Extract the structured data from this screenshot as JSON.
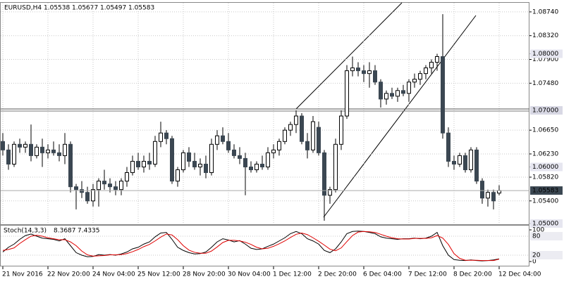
{
  "chart_data": [
    {
      "type": "candlestick",
      "title": "EURUSD,H4",
      "ylim": [
        1.05,
        1.0895
      ],
      "yticks": [
        {
          "value": 1.0874,
          "label": "1.08740"
        },
        {
          "value": 1.0832,
          "label": "1.08320"
        },
        {
          "value": 1.079,
          "label": "1.07900"
        },
        {
          "value": 1.0748,
          "label": "1.07480"
        },
        {
          "value": 1.0665,
          "label": "1.06650"
        },
        {
          "value": 1.0623,
          "label": "1.06230"
        },
        {
          "value": 1.0582,
          "label": "1.05820"
        },
        {
          "value": 1.054,
          "label": "1.05400"
        }
      ],
      "xticks": [
        {
          "value": 0,
          "label": "21 Nov 2016"
        },
        {
          "value": 8,
          "label": "22 Nov 20:00"
        },
        {
          "value": 16,
          "label": "24 Nov 04:00"
        },
        {
          "value": 24,
          "label": "25 Nov 12:00"
        },
        {
          "value": 32,
          "label": "28 Nov 20:00"
        },
        {
          "value": 40,
          "label": "30 Nov 04:00"
        },
        {
          "value": 48,
          "label": "1 Dec 12:00"
        },
        {
          "value": 56,
          "label": "2 Dec 20:00"
        },
        {
          "value": 64,
          "label": "6 Dec 04:00"
        },
        {
          "value": 72,
          "label": "7 Dec 12:00"
        },
        {
          "value": 80,
          "label": "8 Dec 20:00"
        },
        {
          "value": 88,
          "label": "12 Dec 04:00"
        }
      ],
      "hline": {
        "value": 1.07,
        "label": "1.07000"
      },
      "levels": [
        {
          "value": 1.08,
          "label": "1.08000"
        },
        {
          "value": 1.06,
          "label": "1.06000"
        },
        {
          "value": 1.05,
          "label": "1.05000"
        }
      ],
      "grid": true,
      "up_color": "#ffffff",
      "down_color": "#3b4752",
      "open": [
        1.0645,
        1.063,
        1.0605,
        1.064,
        1.0635,
        1.064,
        1.062,
        1.0635,
        1.0625,
        1.063,
        1.0625,
        1.062,
        1.064,
        1.0565,
        1.056,
        1.0555,
        1.054,
        1.056,
        1.0575,
        1.057,
        1.0565,
        1.056,
        1.0575,
        1.059,
        1.061,
        1.06,
        1.061,
        1.0605,
        1.0645,
        1.066,
        1.065,
        1.0575,
        1.0595,
        1.0625,
        1.061,
        1.06,
        1.0605,
        1.059,
        1.064,
        1.0655,
        1.0645,
        1.063,
        1.062,
        1.0615,
        1.06,
        1.0595,
        1.0605,
        1.06,
        1.0625,
        1.063,
        1.0645,
        1.0665,
        1.0675,
        1.069,
        1.0645,
        1.063,
        1.067,
        1.0625,
        1.055,
        1.056,
        1.064,
        1.069,
        1.077,
        1.0775,
        1.077,
        1.0765,
        1.077,
        1.075,
        1.072,
        1.073,
        1.0725,
        1.0735,
        1.073,
        1.075,
        1.0755,
        1.0765,
        1.0775,
        1.0785,
        1.0795,
        1.066,
        1.061,
        1.0605,
        1.062,
        1.0595,
        1.063,
        1.0575,
        1.0545,
        1.0555,
        1.05538
      ],
      "high": [
        1.066,
        1.064,
        1.0645,
        1.065,
        1.0645,
        1.0675,
        1.064,
        1.065,
        1.064,
        1.0645,
        1.064,
        1.066,
        1.0645,
        1.057,
        1.0575,
        1.0565,
        1.057,
        1.058,
        1.0595,
        1.058,
        1.0575,
        1.058,
        1.06,
        1.062,
        1.0625,
        1.062,
        1.0625,
        1.0655,
        1.068,
        1.0665,
        1.0655,
        1.06,
        1.063,
        1.0635,
        1.0625,
        1.0615,
        1.062,
        1.065,
        1.0665,
        1.067,
        1.066,
        1.064,
        1.0635,
        1.0625,
        1.061,
        1.061,
        1.062,
        1.0635,
        1.064,
        1.065,
        1.067,
        1.068,
        1.07,
        1.0695,
        1.066,
        1.069,
        1.068,
        1.063,
        1.0565,
        1.065,
        1.07,
        1.078,
        1.0795,
        1.0785,
        1.078,
        1.0785,
        1.078,
        1.0755,
        1.0735,
        1.074,
        1.074,
        1.0745,
        1.0755,
        1.0765,
        1.077,
        1.078,
        1.079,
        1.08,
        1.087,
        1.067,
        1.062,
        1.0625,
        1.0625,
        1.0635,
        1.0635,
        1.058,
        1.056,
        1.056,
        1.05677
      ],
      "low": [
        1.062,
        1.0595,
        1.06,
        1.0625,
        1.0625,
        1.061,
        1.0615,
        1.06,
        1.0615,
        1.062,
        1.061,
        1.0605,
        1.0555,
        1.0525,
        1.0545,
        1.0535,
        1.053,
        1.053,
        1.056,
        1.0555,
        1.055,
        1.055,
        1.0565,
        1.0585,
        1.0595,
        1.059,
        1.0595,
        1.06,
        1.0635,
        1.064,
        1.057,
        1.0565,
        1.059,
        1.06,
        1.0595,
        1.0585,
        1.058,
        1.0585,
        1.063,
        1.064,
        1.0625,
        1.0615,
        1.0605,
        1.055,
        1.059,
        1.059,
        1.0595,
        1.0595,
        1.0615,
        1.062,
        1.064,
        1.0655,
        1.066,
        1.064,
        1.0615,
        1.0625,
        1.062,
        1.0505,
        1.0535,
        1.0555,
        1.063,
        1.0685,
        1.076,
        1.076,
        1.075,
        1.074,
        1.0745,
        1.0705,
        1.071,
        1.072,
        1.0715,
        1.0725,
        1.0715,
        1.074,
        1.0745,
        1.0755,
        1.0765,
        1.077,
        1.065,
        1.06,
        1.0595,
        1.06,
        1.059,
        1.059,
        1.057,
        1.0535,
        1.053,
        1.0525,
        1.05497
      ],
      "close": [
        1.063,
        1.0605,
        1.064,
        1.0635,
        1.064,
        1.062,
        1.0635,
        1.0625,
        1.063,
        1.0625,
        1.062,
        1.064,
        1.0565,
        1.056,
        1.0555,
        1.054,
        1.056,
        1.0575,
        1.057,
        1.0565,
        1.056,
        1.0575,
        1.059,
        1.061,
        1.06,
        1.061,
        1.0605,
        1.0645,
        1.066,
        1.065,
        1.0575,
        1.0595,
        1.0625,
        1.061,
        1.06,
        1.0605,
        1.059,
        1.064,
        1.0655,
        1.0645,
        1.063,
        1.062,
        1.0615,
        1.06,
        1.0595,
        1.0605,
        1.06,
        1.0625,
        1.063,
        1.0645,
        1.0665,
        1.0675,
        1.069,
        1.0645,
        1.063,
        1.068,
        1.0625,
        1.055,
        1.056,
        1.064,
        1.069,
        1.077,
        1.0775,
        1.077,
        1.0765,
        1.077,
        1.075,
        1.072,
        1.073,
        1.0725,
        1.0735,
        1.073,
        1.075,
        1.0755,
        1.0765,
        1.0775,
        1.0785,
        1.0795,
        1.066,
        1.061,
        1.0605,
        1.062,
        1.0595,
        1.063,
        1.0575,
        1.0545,
        1.0555,
        1.054,
        1.05583
      ]
    },
    {
      "type": "line",
      "title": "Stoch(14,3,3)",
      "ylim": [
        0,
        100
      ],
      "yticks": [
        0,
        20,
        80,
        100
      ],
      "series": [
        {
          "name": "Main",
          "color": "#000000",
          "values": [
            30,
            45,
            55,
            70,
            82,
            87,
            80,
            74,
            72,
            70,
            65,
            72,
            50,
            28,
            20,
            15,
            16,
            22,
            20,
            22,
            20,
            24,
            30,
            40,
            45,
            55,
            62,
            78,
            90,
            92,
            70,
            45,
            35,
            28,
            24,
            25,
            30,
            45,
            62,
            72,
            68,
            62,
            66,
            55,
            42,
            38,
            40,
            48,
            55,
            65,
            75,
            88,
            95,
            88,
            72,
            65,
            55,
            35,
            28,
            40,
            62,
            88,
            95,
            96,
            95,
            92,
            88,
            78,
            74,
            72,
            70,
            72,
            72,
            74,
            72,
            74,
            80,
            92,
            50,
            20,
            6,
            4,
            3,
            5,
            3,
            2,
            3,
            5,
            8.3687
          ]
        },
        {
          "name": "Signal",
          "color": "#e00000",
          "values": [
            35,
            38,
            43,
            57,
            69,
            80,
            83,
            80,
            75,
            72,
            69,
            69,
            62,
            50,
            33,
            21,
            17,
            18,
            19,
            21,
            21,
            22,
            25,
            31,
            38,
            47,
            54,
            65,
            77,
            87,
            84,
            69,
            50,
            36,
            29,
            26,
            26,
            33,
            46,
            60,
            67,
            67,
            65,
            61,
            54,
            45,
            40,
            42,
            48,
            56,
            65,
            76,
            86,
            90,
            85,
            75,
            64,
            52,
            39,
            34,
            43,
            63,
            82,
            93,
            95,
            94,
            92,
            86,
            80,
            75,
            72,
            71,
            71,
            73,
            73,
            73,
            75,
            82,
            74,
            54,
            25,
            10,
            4,
            4,
            4,
            3,
            3,
            3,
            7.4335
          ]
        }
      ]
    }
  ]
}
